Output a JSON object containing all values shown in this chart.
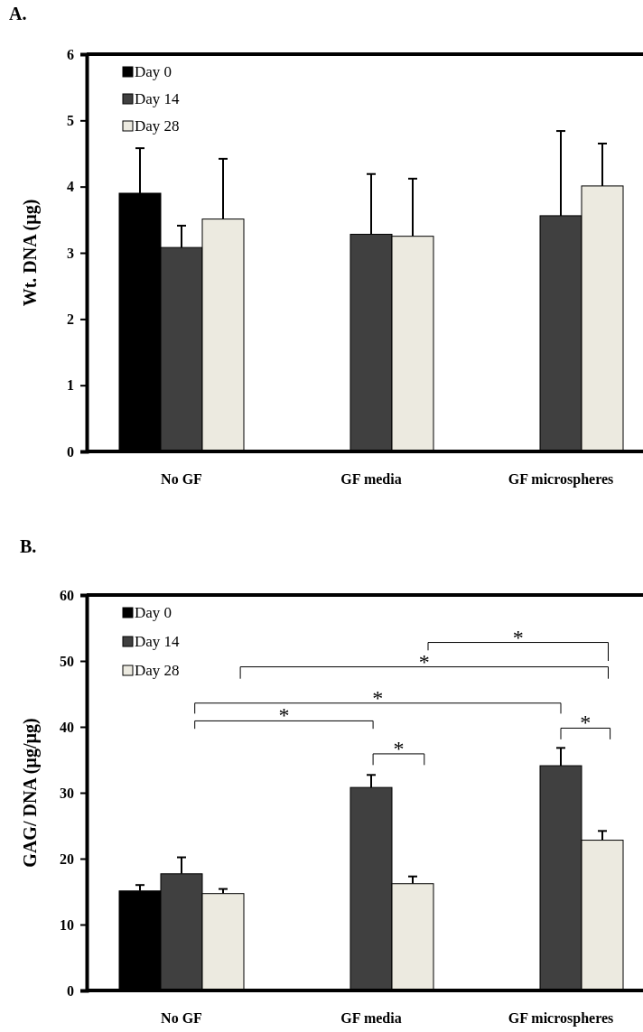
{
  "chart_data": [
    {
      "type": "bar",
      "title": "A.",
      "ylabel": "Wt. DNA (µg)",
      "categories": [
        "No GF",
        "GF media",
        "GF microspheres"
      ],
      "series": [
        {
          "name": "Day 0",
          "color": "#000000",
          "values": [
            3.9,
            null,
            null
          ],
          "errors": [
            [
              3.9,
              4.58
            ],
            null,
            null
          ]
        },
        {
          "name": "Day 14",
          "color": "#404040",
          "values": [
            3.08,
            3.28,
            3.56
          ],
          "errors": [
            [
              3.08,
              3.41
            ],
            [
              3.28,
              4.19
            ],
            [
              3.56,
              4.84
            ]
          ]
        },
        {
          "name": "Day 28",
          "color": "#eceae0",
          "values": [
            3.51,
            3.25,
            4.01
          ],
          "errors": [
            [
              3.51,
              4.42
            ],
            [
              3.25,
              4.12
            ],
            [
              4.01,
              4.65
            ]
          ]
        }
      ],
      "ylim": [
        0,
        6
      ],
      "yticks": [
        0,
        1,
        2,
        3,
        4,
        5,
        6
      ],
      "grid": false,
      "legend": "top left"
    },
    {
      "type": "bar",
      "title": "B.",
      "ylabel": "GAG/ DNA (µg/µg)",
      "categories": [
        "No GF",
        "GF media",
        "GF microspheres"
      ],
      "series": [
        {
          "name": "Day 0",
          "color": "#000000",
          "values": [
            15.1,
            null,
            null
          ],
          "errors": [
            [
              15.1,
              16.0
            ],
            null,
            null
          ]
        },
        {
          "name": "Day 14",
          "color": "#404040",
          "values": [
            17.7,
            30.8,
            34.1
          ],
          "errors": [
            [
              17.7,
              20.2
            ],
            [
              30.8,
              32.7
            ],
            [
              34.1,
              36.8
            ]
          ]
        },
        {
          "name": "Day 28",
          "color": "#eceae0",
          "values": [
            14.7,
            16.2,
            22.8
          ],
          "errors": [
            [
              14.7,
              15.4
            ],
            [
              16.2,
              17.3
            ],
            [
              22.8,
              24.2
            ]
          ]
        }
      ],
      "ylim": [
        0,
        60
      ],
      "yticks": [
        0,
        10,
        20,
        30,
        40,
        50,
        60
      ],
      "grid": false,
      "legend": "top left",
      "annotations": [
        "*",
        "*",
        "*",
        "*",
        "*",
        "*"
      ]
    }
  ]
}
